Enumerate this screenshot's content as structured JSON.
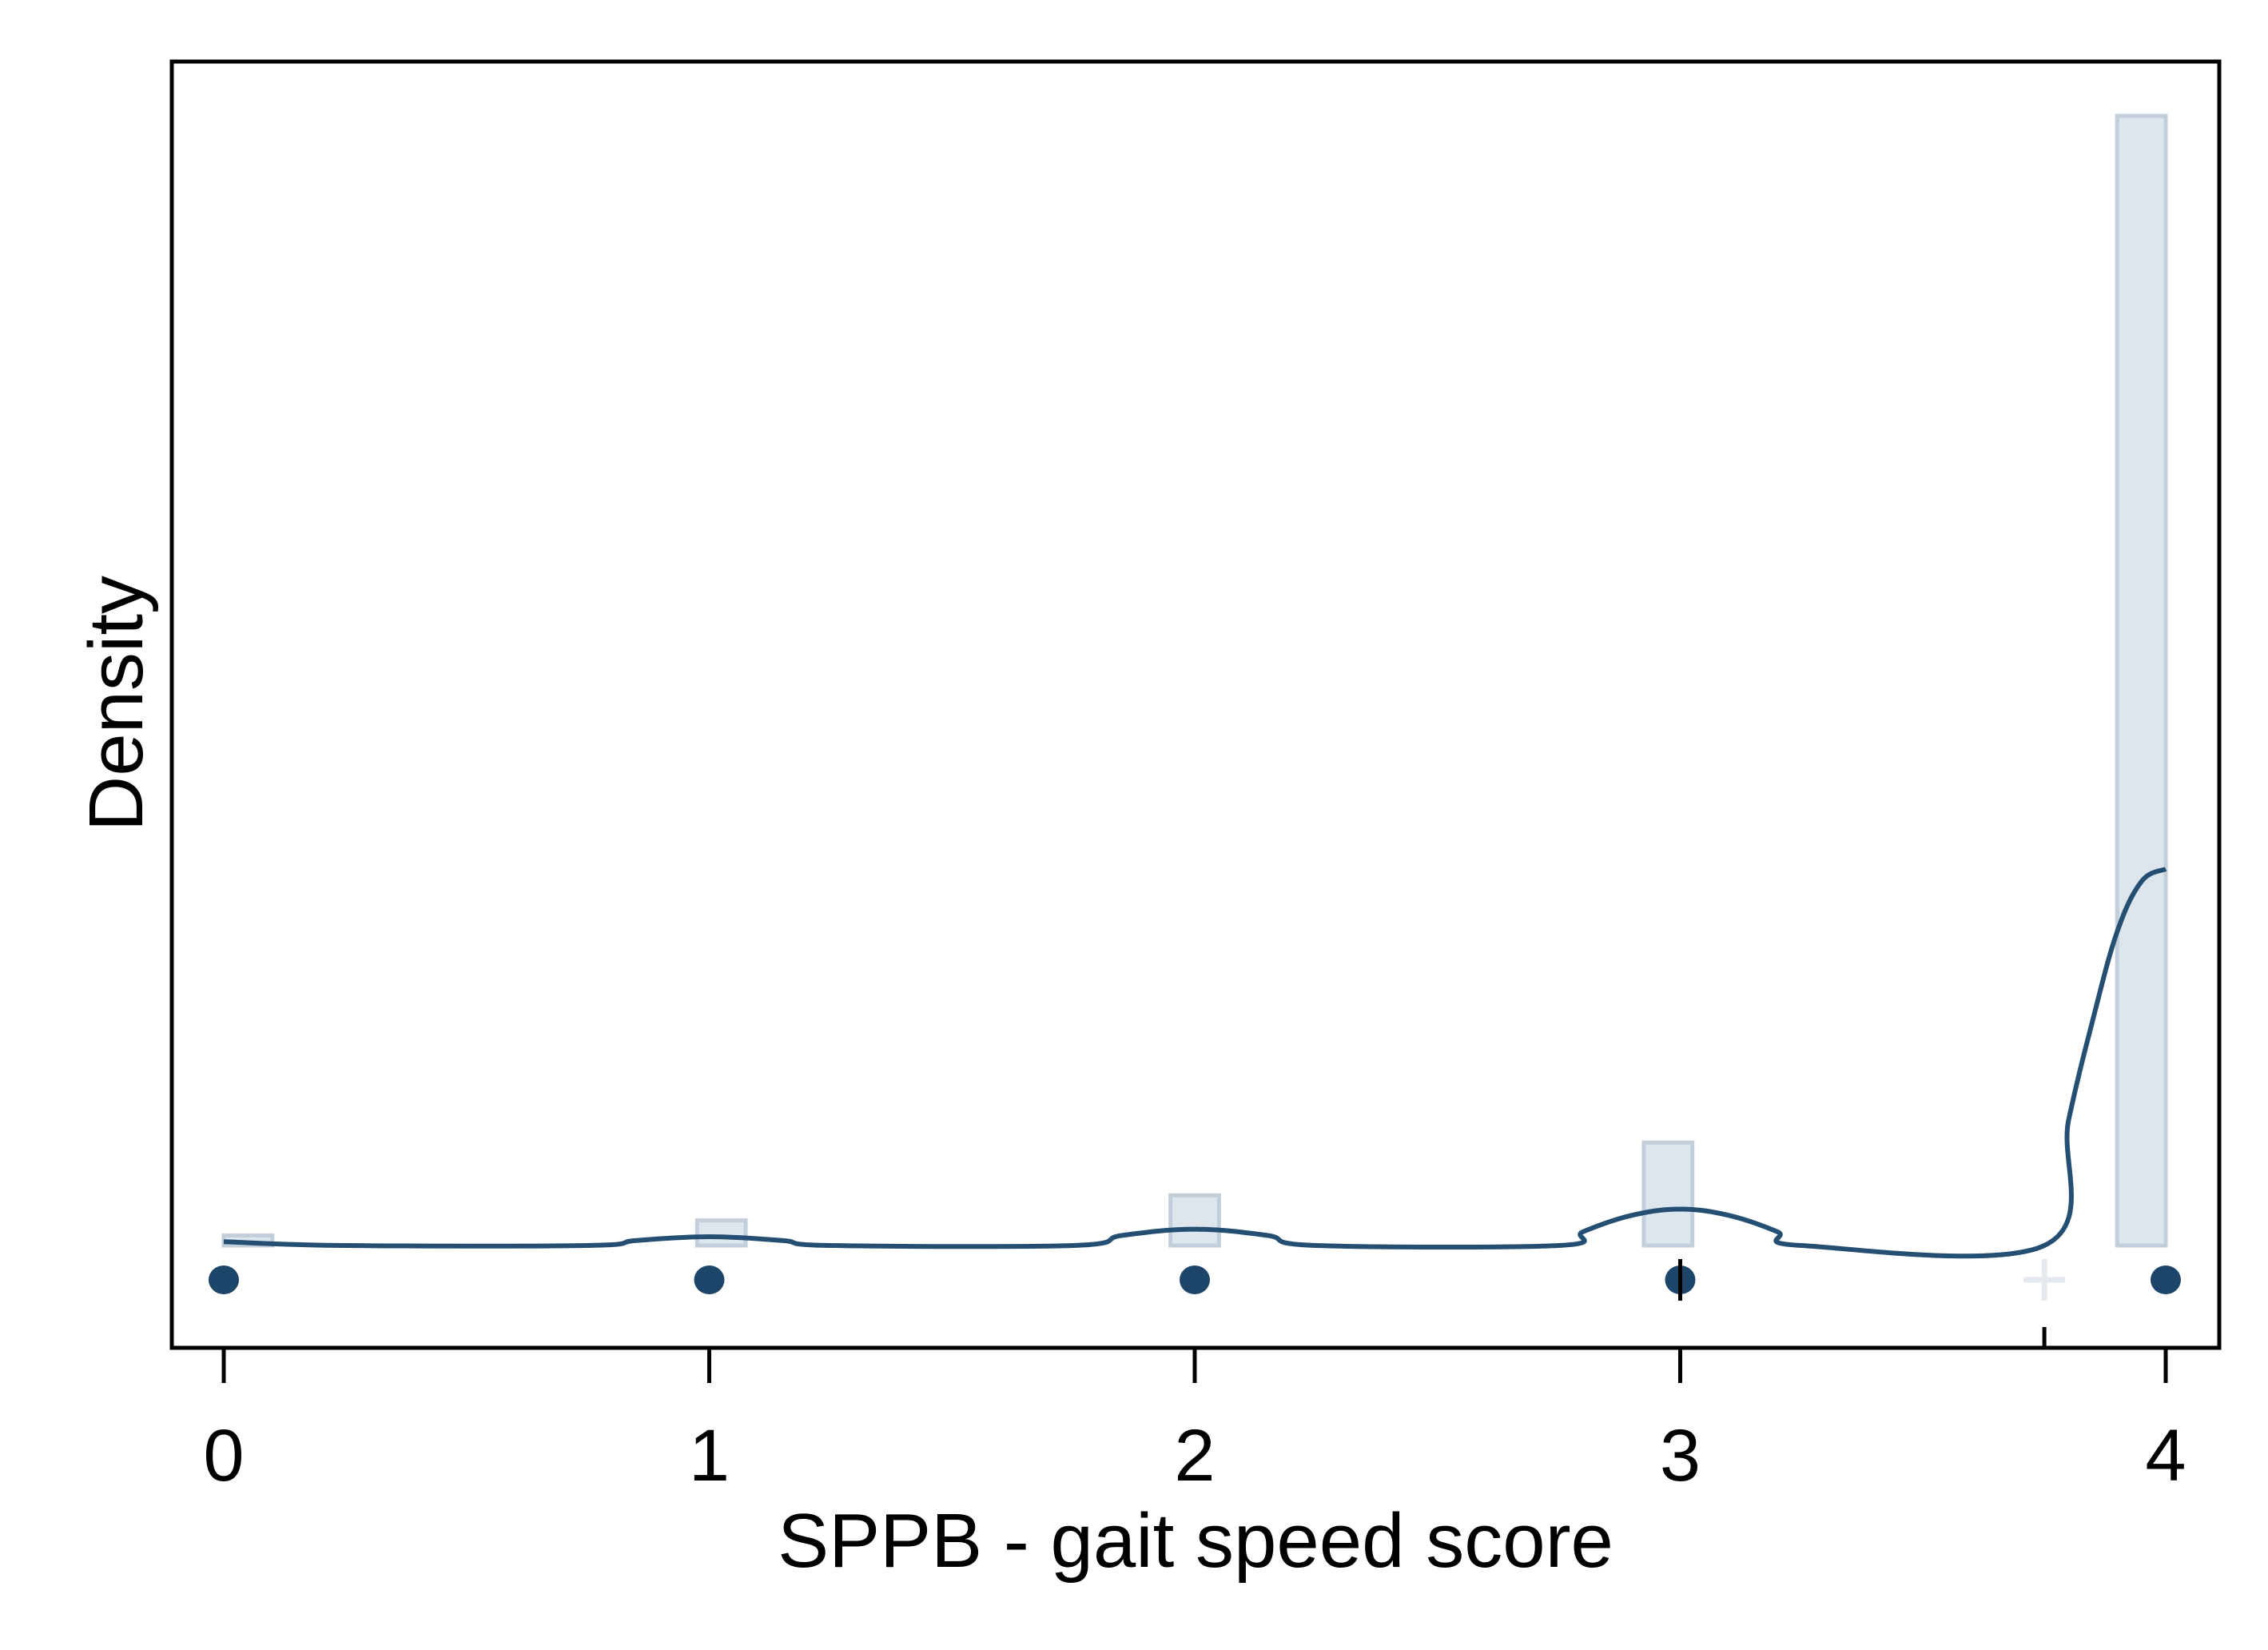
{
  "chart_data": {
    "type": "histogram",
    "xlabel": "SPPB - gait speed score",
    "ylabel": "Density",
    "xlim": [
      -0.1,
      4.1
    ],
    "ylim": [
      0,
      1.0
    ],
    "x_ticks": [
      0,
      1,
      2,
      3,
      4
    ],
    "y_ticks_labeled": false,
    "grid": false,
    "legend": "none",
    "histogram": {
      "bins": [
        {
          "x_start": 0.0,
          "x_end": 0.1,
          "density": 0.008
        },
        {
          "x_start": 0.975,
          "x_end": 1.075,
          "density": 0.02
        },
        {
          "x_start": 1.95,
          "x_end": 2.05,
          "density": 0.04
        },
        {
          "x_start": 2.925,
          "x_end": 3.025,
          "density": 0.082
        },
        {
          "x_start": 3.9,
          "x_end": 4.0,
          "density": 0.9
        }
      ]
    },
    "density_curve": {
      "x": [
        0.0,
        0.25,
        0.75,
        0.85,
        1.0,
        1.15,
        1.25,
        1.75,
        1.85,
        2.0,
        2.15,
        2.25,
        2.75,
        2.8,
        2.9,
        3.0,
        3.1,
        3.2,
        3.25,
        3.75,
        3.8,
        3.85,
        3.9,
        3.95,
        4.0
      ],
      "y": [
        0.003,
        0.0,
        0.0,
        0.004,
        0.007,
        0.004,
        0.0,
        0.0,
        0.008,
        0.013,
        0.008,
        0.0,
        0.0,
        0.011,
        0.024,
        0.029,
        0.024,
        0.011,
        0.0,
        0.0,
        0.1,
        0.18,
        0.25,
        0.29,
        0.3
      ]
    },
    "observations": [
      {
        "x": 0,
        "marker": "dot"
      },
      {
        "x": 1,
        "marker": "dot"
      },
      {
        "x": 2,
        "marker": "dot"
      },
      {
        "x": 3,
        "marker": "dot"
      },
      {
        "x": 4,
        "marker": "dot"
      },
      {
        "x": 3.75,
        "marker": "plus"
      }
    ],
    "extra_ticks": [
      3,
      3.75
    ],
    "colors": {
      "bar_fill": "#dde5ed",
      "bar_stroke": "#c2cfda",
      "curve": "#254e73",
      "dots": "#1d4469",
      "plus": "#e3e9ef",
      "axis": "#000000"
    }
  }
}
